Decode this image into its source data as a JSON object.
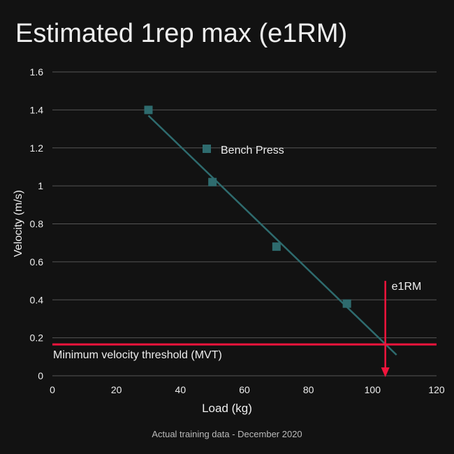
{
  "chart_data": {
    "type": "scatter",
    "title": "Estimated 1rep max (e1RM)",
    "caption": "Actual training data - December 2020",
    "xlabel": "Load (kg)",
    "ylabel": "Velocity (m/s)",
    "xlim": [
      0,
      120
    ],
    "ylim": [
      0,
      1.6
    ],
    "xticks": [
      0,
      20,
      40,
      60,
      80,
      100,
      120
    ],
    "yticks": [
      0,
      0.2,
      0.4,
      0.6,
      0.8,
      1,
      1.2,
      1.4,
      1.6
    ],
    "ytick_labels": [
      "0",
      "0.2",
      "0.4",
      "0.6",
      "0.8",
      "1",
      "1.2",
      "1.4",
      "1.6"
    ],
    "grid": true,
    "legend_placement": "top-center",
    "series": [
      {
        "name": "Bench Press",
        "x": [
          30,
          50,
          70,
          92
        ],
        "y": [
          1.4,
          1.02,
          0.68,
          0.38
        ],
        "color": "#2e6b6e"
      }
    ],
    "trendline": {
      "x": [
        30,
        107.5
      ],
      "y": [
        1.37,
        0.11
      ],
      "color": "#2e6b6e"
    },
    "mvt": {
      "label": "Minimum velocity threshold (MVT)",
      "y": 0.165,
      "color": "#f0143c"
    },
    "e1rm": {
      "label": "e1RM",
      "x": 104,
      "y_from": 0.5,
      "color": "#f0143c"
    }
  }
}
